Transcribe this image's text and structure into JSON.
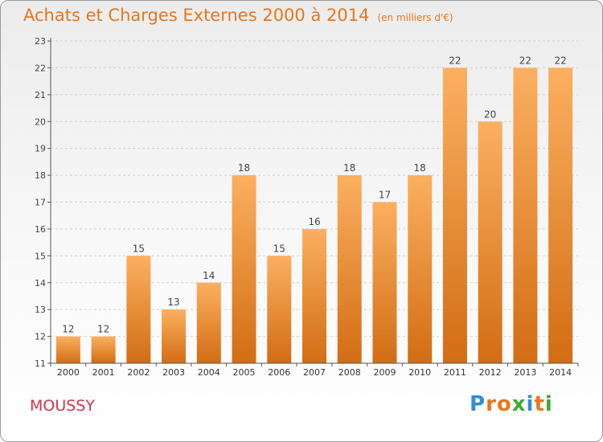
{
  "header": {
    "title": "Achats et Charges Externes 2000 à 2014",
    "unit": "(en milliers d'€)"
  },
  "footer": {
    "city": "MOUSSY",
    "brand": "Proxiti",
    "brand_letters": [
      {
        "ch": "P",
        "color": "#2f8fd6"
      },
      {
        "ch": "r",
        "color": "#e8761e"
      },
      {
        "ch": "o",
        "color": "#e8761e"
      },
      {
        "ch": "x",
        "color": "#3aaa35"
      },
      {
        "ch": "i",
        "color": "#2f8fd6"
      },
      {
        "ch": "t",
        "color": "#e8761e"
      },
      {
        "ch": "i",
        "color": "#3aaa35"
      }
    ]
  },
  "colors": {
    "bar_light": "#fbb060",
    "bar_dark": "#d26d14",
    "title": "#e8761e",
    "city": "#d3334d",
    "grid": "#cfcfcf"
  },
  "chart_data": {
    "type": "bar",
    "categories": [
      "2000",
      "2001",
      "2002",
      "2003",
      "2004",
      "2005",
      "2006",
      "2007",
      "2008",
      "2009",
      "2010",
      "2011",
      "2012",
      "2013",
      "2014"
    ],
    "values": [
      12,
      12,
      15,
      13,
      14,
      18,
      15,
      16,
      18,
      17,
      18,
      22,
      20,
      22,
      22
    ],
    "title": "Achats et Charges Externes 2000 à 2014",
    "subtitle": "(en milliers d'€)",
    "ylim": [
      11,
      23
    ],
    "yticks": [
      11,
      12,
      13,
      14,
      15,
      16,
      17,
      18,
      19,
      20,
      21,
      22,
      23
    ],
    "grid": true,
    "data_labels": true
  }
}
